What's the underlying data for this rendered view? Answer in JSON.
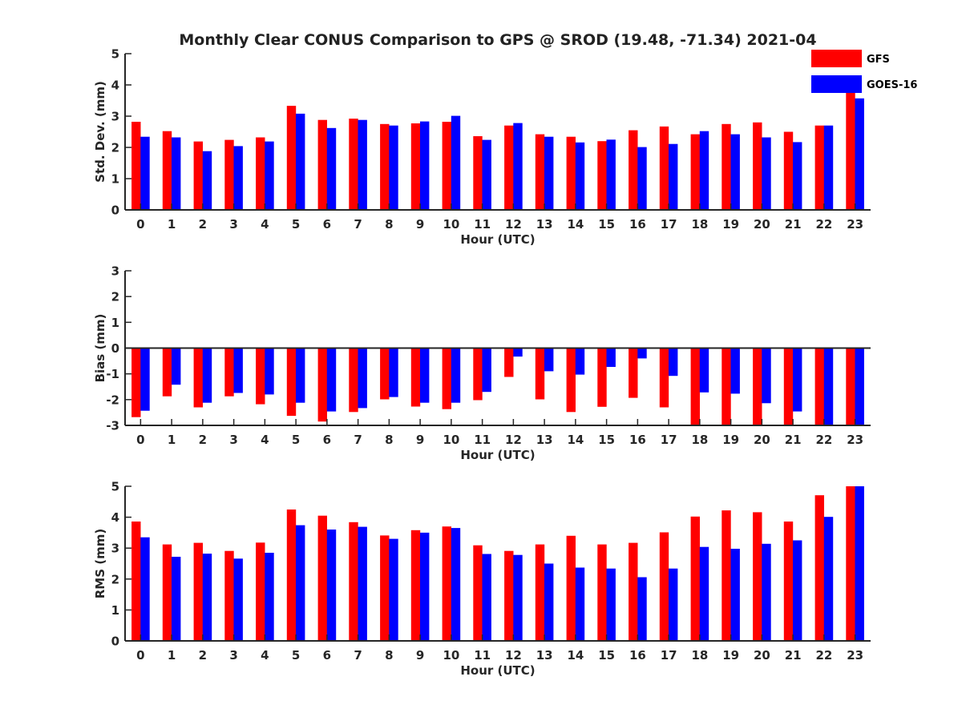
{
  "chart_data": [
    {
      "type": "bar",
      "title": "Monthly Clear CONUS Comparison to GPS @ SROD (19.48, -71.34) 2021-04",
      "xlabel": "Hour (UTC)",
      "ylabel": "Std. Dev. (mm)",
      "ylim": [
        0,
        5
      ],
      "yticks": [
        "0",
        "1",
        "2",
        "3",
        "4",
        "5"
      ],
      "categories": [
        "0",
        "1",
        "2",
        "3",
        "4",
        "5",
        "6",
        "7",
        "8",
        "9",
        "10",
        "11",
        "12",
        "13",
        "14",
        "15",
        "16",
        "17",
        "18",
        "19",
        "20",
        "21",
        "22",
        "23"
      ],
      "series": [
        {
          "name": "GFS",
          "color": "#ff0000",
          "values": [
            2.82,
            2.52,
            2.19,
            2.24,
            2.32,
            3.33,
            2.88,
            2.92,
            2.75,
            2.77,
            2.82,
            2.36,
            2.7,
            2.42,
            2.34,
            2.2,
            2.55,
            2.67,
            2.42,
            2.75,
            2.8,
            2.5,
            2.7,
            4.0
          ]
        },
        {
          "name": "GOES-16",
          "color": "#0000ff",
          "values": [
            2.34,
            2.32,
            1.88,
            2.04,
            2.19,
            3.08,
            2.62,
            2.88,
            2.7,
            2.83,
            3.01,
            2.24,
            2.78,
            2.34,
            2.16,
            2.25,
            2.01,
            2.11,
            2.52,
            2.42,
            2.32,
            2.17,
            2.7,
            3.57
          ]
        }
      ],
      "legend": {
        "position": "top-right",
        "entries": [
          "GFS",
          "GOES-16"
        ]
      }
    },
    {
      "type": "bar",
      "xlabel": "Hour (UTC)",
      "ylabel": "Bias (mm)",
      "ylim": [
        -3,
        3
      ],
      "yticks": [
        "-3",
        "-2",
        "-1",
        "0",
        "1",
        "2",
        "3"
      ],
      "categories": [
        "0",
        "1",
        "2",
        "3",
        "4",
        "5",
        "6",
        "7",
        "8",
        "9",
        "10",
        "11",
        "12",
        "13",
        "14",
        "15",
        "16",
        "17",
        "18",
        "19",
        "20",
        "21",
        "22",
        "23"
      ],
      "series": [
        {
          "name": "GFS",
          "color": "#ff0000",
          "values": [
            -2.68,
            -1.87,
            -2.3,
            -1.87,
            -2.18,
            -2.63,
            -2.85,
            -2.48,
            -1.99,
            -2.27,
            -2.37,
            -2.02,
            -1.12,
            -1.99,
            -2.48,
            -2.28,
            -1.93,
            -2.3,
            -3.0,
            -3.0,
            -3.0,
            -3.0,
            -3.0,
            -3.0
          ]
        },
        {
          "name": "GOES-16",
          "color": "#0000ff",
          "values": [
            -2.43,
            -1.42,
            -2.12,
            -1.74,
            -1.8,
            -2.12,
            -2.46,
            -2.33,
            -1.9,
            -2.12,
            -2.12,
            -1.7,
            -0.33,
            -0.9,
            -1.03,
            -0.73,
            -0.4,
            -1.08,
            -1.72,
            -1.77,
            -2.14,
            -2.46,
            -2.98,
            -3.0
          ]
        }
      ]
    },
    {
      "type": "bar",
      "xlabel": "Hour (UTC)",
      "ylabel": "RMS (mm)",
      "ylim": [
        0,
        5
      ],
      "yticks": [
        "0",
        "1",
        "2",
        "3",
        "4",
        "5"
      ],
      "categories": [
        "0",
        "1",
        "2",
        "3",
        "4",
        "5",
        "6",
        "7",
        "8",
        "9",
        "10",
        "11",
        "12",
        "13",
        "14",
        "15",
        "16",
        "17",
        "18",
        "19",
        "20",
        "21",
        "22",
        "23"
      ],
      "series": [
        {
          "name": "GFS",
          "color": "#ff0000",
          "values": [
            3.86,
            3.12,
            3.17,
            2.91,
            3.18,
            4.25,
            4.05,
            3.84,
            3.41,
            3.58,
            3.7,
            3.09,
            2.91,
            3.12,
            3.4,
            3.12,
            3.17,
            3.51,
            4.02,
            4.22,
            4.16,
            3.86,
            4.71,
            5.0
          ]
        },
        {
          "name": "GOES-16",
          "color": "#0000ff",
          "values": [
            3.35,
            2.72,
            2.82,
            2.66,
            2.85,
            3.74,
            3.6,
            3.69,
            3.3,
            3.5,
            3.65,
            2.81,
            2.78,
            2.5,
            2.37,
            2.34,
            2.06,
            2.34,
            3.04,
            2.98,
            3.14,
            3.25,
            4.01,
            5.0
          ]
        }
      ]
    }
  ]
}
